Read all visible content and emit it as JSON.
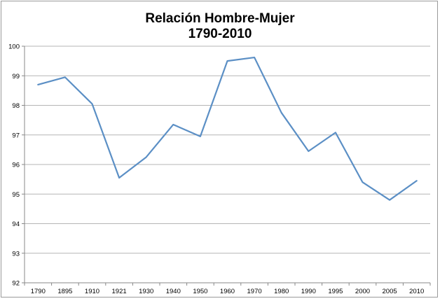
{
  "chart_data": {
    "type": "line",
    "title": "Relación Hombre-Mujer",
    "subtitle": "1790-2010",
    "xlabel": "",
    "ylabel": "",
    "categories": [
      "1790",
      "1895",
      "1910",
      "1921",
      "1930",
      "1940",
      "1950",
      "1960",
      "1970",
      "1980",
      "1990",
      "1995",
      "2000",
      "2005",
      "2010"
    ],
    "series": [
      {
        "values": [
          98.7,
          98.95,
          98.05,
          95.55,
          96.25,
          97.35,
          96.95,
          99.5,
          99.62,
          97.75,
          96.45,
          97.08,
          95.4,
          94.8,
          95.45
        ]
      }
    ],
    "ylim": [
      92,
      100
    ],
    "yticks": [
      92,
      93,
      94,
      95,
      96,
      97,
      98,
      99,
      100
    ],
    "grid": true,
    "legend": "none",
    "line_color": "#5b8fc5",
    "grid_color": "#b5b5b5"
  }
}
